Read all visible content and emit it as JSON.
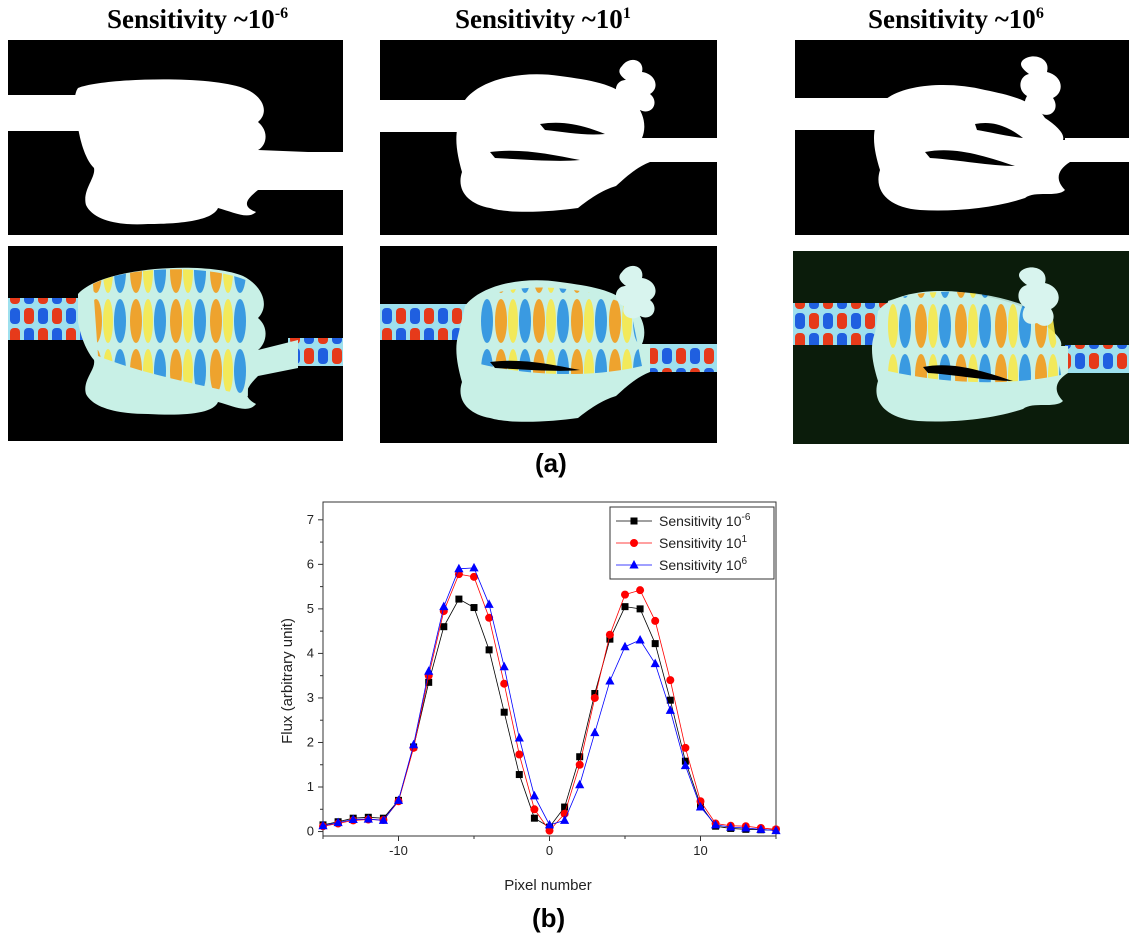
{
  "figure": {
    "columns": [
      {
        "title_base": "Sensitivity ~10",
        "title_exp": "-6"
      },
      {
        "title_base": "Sensitivity ~10",
        "title_exp": "1"
      },
      {
        "title_base": "Sensitivity ~10",
        "title_exp": "6"
      }
    ],
    "label_a": "(a)",
    "label_b": "(b)"
  },
  "colors": {
    "series_black": "#000000",
    "series_red": "#ff0000",
    "series_blue": "#0000ff"
  },
  "chart_data": {
    "type": "line",
    "title": "",
    "xlabel": "Pixel number",
    "ylabel": "Flux (arbitrary unit)",
    "xlim": [
      -15,
      15
    ],
    "ylim": [
      -0.1,
      7.4
    ],
    "x_ticks": [
      -10,
      0,
      10
    ],
    "y_ticks": [
      0,
      1,
      2,
      3,
      4,
      5,
      6,
      7
    ],
    "grid": false,
    "legend_position": "top-right",
    "x": [
      -15,
      -14,
      -13,
      -12,
      -11,
      -10,
      -9,
      -8,
      -7,
      -6,
      -5,
      -4,
      -3,
      -2,
      -1,
      0,
      1,
      2,
      3,
      4,
      5,
      6,
      7,
      8,
      9,
      10,
      11,
      12,
      13,
      14,
      15
    ],
    "series": [
      {
        "name_base": "Sensitivity 10",
        "name_exp": "-6",
        "marker": "square",
        "color": "#000000",
        "values": [
          0.15,
          0.22,
          0.3,
          0.32,
          0.3,
          0.7,
          1.9,
          3.35,
          4.6,
          5.22,
          5.03,
          4.08,
          2.68,
          1.28,
          0.3,
          0.1,
          0.55,
          1.68,
          3.1,
          4.32,
          5.05,
          5.0,
          4.22,
          2.95,
          1.58,
          0.6,
          0.12,
          0.07,
          0.05,
          0.04,
          0.03
        ]
      },
      {
        "name_base": "Sensitivity 10",
        "name_exp": "1",
        "marker": "circle",
        "color": "#ff0000",
        "values": [
          0.12,
          0.18,
          0.25,
          0.27,
          0.26,
          0.68,
          1.88,
          3.5,
          4.95,
          5.78,
          5.72,
          4.8,
          3.32,
          1.73,
          0.5,
          0.02,
          0.4,
          1.5,
          3.0,
          4.42,
          5.32,
          5.42,
          4.73,
          3.4,
          1.88,
          0.68,
          0.18,
          0.13,
          0.12,
          0.08,
          0.05
        ]
      },
      {
        "name_base": "Sensitivity 10",
        "name_exp": "6",
        "marker": "triangle",
        "color": "#0000ff",
        "values": [
          0.13,
          0.2,
          0.27,
          0.28,
          0.25,
          0.7,
          1.95,
          3.6,
          5.05,
          5.9,
          5.92,
          5.1,
          3.7,
          2.1,
          0.8,
          0.15,
          0.25,
          1.05,
          2.22,
          3.38,
          4.15,
          4.3,
          3.77,
          2.72,
          1.48,
          0.55,
          0.15,
          0.1,
          0.08,
          0.05,
          0.02
        ]
      }
    ]
  }
}
